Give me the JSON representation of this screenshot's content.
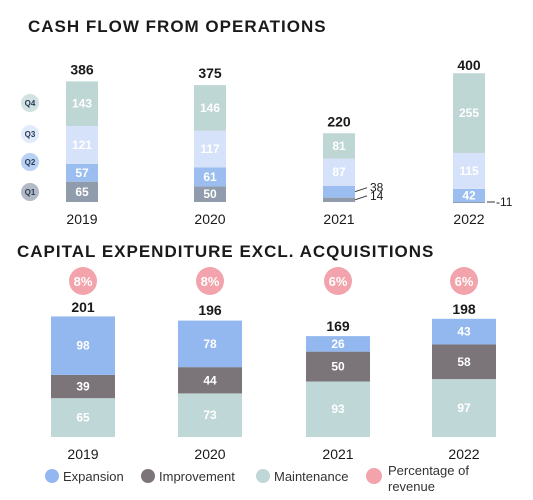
{
  "colors": {
    "q1": "#909cac",
    "q2": "#9bbdf0",
    "q3": "#d5e2fa",
    "q4": "#bed6d4",
    "expansion": "#93b8ef",
    "improvement": "#7b7478",
    "maintenance": "#bfd7d6",
    "percentage": "#f2a3ab",
    "quarter_badge": "#b8c9e4"
  },
  "legend": {
    "expansion": "Expansion",
    "improvement": "Improvement",
    "maintenance": "Maintenance",
    "percentage_line1": "Percentage of",
    "percentage_line2": "revenue"
  },
  "chart_data": [
    {
      "type": "bar",
      "stacked": true,
      "title": "CASH FLOW FROM OPERATIONS",
      "categories": [
        "2019",
        "2020",
        "2021",
        "2022"
      ],
      "totals": [
        386,
        375,
        220,
        400
      ],
      "quarter_labels": [
        "Q1",
        "Q2",
        "Q3",
        "Q4"
      ],
      "series": [
        {
          "name": "Q1",
          "values": [
            65,
            50,
            14,
            -11
          ]
        },
        {
          "name": "Q2",
          "values": [
            57,
            61,
            38,
            42
          ]
        },
        {
          "name": "Q3",
          "values": [
            121,
            117,
            87,
            115
          ]
        },
        {
          "name": "Q4",
          "values": [
            143,
            146,
            81,
            255
          ]
        }
      ],
      "legend": "left"
    },
    {
      "type": "bar",
      "stacked": true,
      "title": "CAPITAL EXPENDITURE EXCL. ACQUISITIONS",
      "categories": [
        "2019",
        "2020",
        "2021",
        "2022"
      ],
      "totals": [
        201,
        196,
        169,
        198
      ],
      "percentage_of_revenue": [
        "8%",
        "8%",
        "6%",
        "6%"
      ],
      "series": [
        {
          "name": "Maintenance",
          "values": [
            65,
            73,
            93,
            97
          ]
        },
        {
          "name": "Improvement",
          "values": [
            39,
            44,
            50,
            58
          ]
        },
        {
          "name": "Expansion",
          "values": [
            98,
            78,
            26,
            43
          ]
        }
      ],
      "legend": "bottom"
    }
  ]
}
